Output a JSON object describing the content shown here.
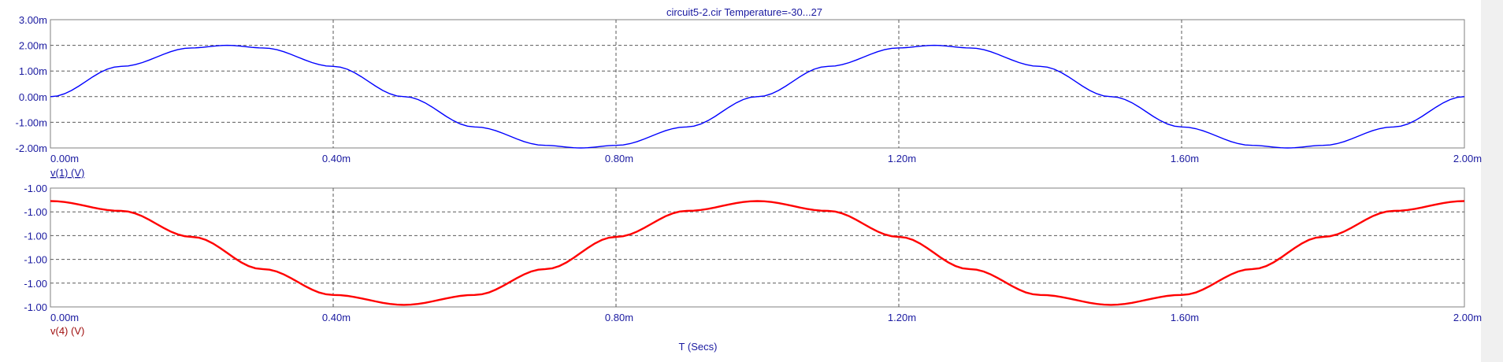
{
  "title": "circuit5-2.cir Temperature=-30...27",
  "colors": {
    "title": "#1a1aa0",
    "top_axis_text": "#1a1aa0",
    "bottom_axis_text": "#a01010",
    "x_axis_text": "#1a1aa0",
    "top_trace": "#0000ff",
    "bottom_trace": "#ff0000"
  },
  "chart_data": [
    {
      "type": "line",
      "panel": "top",
      "trace_label": "v(1) (V)",
      "x_ticks": [
        "0.00m",
        "0.40m",
        "0.80m",
        "1.20m",
        "1.60m",
        "2.00m"
      ],
      "x_values": [
        0,
        0.4,
        0.8,
        1.2,
        1.6,
        2.0
      ],
      "y_ticks": [
        "3.00m",
        "2.00m",
        "1.00m",
        "0.00m",
        "-1.00m",
        "-2.00m"
      ],
      "y_tick_values": [
        3,
        2,
        1,
        0,
        -1,
        -2
      ],
      "xlim": [
        0,
        2.0
      ],
      "ylim": [
        -2,
        3
      ],
      "grid": true,
      "series": [
        {
          "name": "v(1) (V)",
          "x": [
            0,
            0.1,
            0.2,
            0.25,
            0.3,
            0.4,
            0.5,
            0.6,
            0.7,
            0.75,
            0.8,
            0.9,
            1.0,
            1.1,
            1.2,
            1.25,
            1.3,
            1.4,
            1.5,
            1.6,
            1.7,
            1.75,
            1.8,
            1.9,
            2.0
          ],
          "y": [
            0,
            1.18,
            1.9,
            2.0,
            1.9,
            1.18,
            0,
            -1.18,
            -1.9,
            -2.0,
            -1.9,
            -1.18,
            0,
            1.18,
            1.9,
            2.0,
            1.9,
            1.18,
            0,
            -1.18,
            -1.9,
            -2.0,
            -1.9,
            -1.18,
            0
          ]
        }
      ]
    },
    {
      "type": "line",
      "panel": "bottom",
      "trace_label": "v(4) (V)",
      "x_ticks": [
        "0.00m",
        "0.40m",
        "0.80m",
        "1.20m",
        "1.60m",
        "2.00m"
      ],
      "x_values": [
        0,
        0.4,
        0.8,
        1.2,
        1.6,
        2.0
      ],
      "y_ticks": [
        "-1.00",
        "-1.00",
        "-1.00",
        "-1.00",
        "-1.00",
        "-1.00"
      ],
      "grid": true,
      "series": [
        {
          "name": "v(4) (V)",
          "x": [
            0,
            0.1,
            0.2,
            0.3,
            0.4,
            0.5,
            0.6,
            0.7,
            0.8,
            0.9,
            1.0,
            1.1,
            1.2,
            1.3,
            1.4,
            1.5,
            1.6,
            1.7,
            1.8,
            1.9,
            2.0
          ],
          "y": [
            1,
            0.81,
            0.31,
            -0.31,
            -0.81,
            -1,
            -0.81,
            -0.31,
            0.31,
            0.81,
            1,
            0.81,
            0.31,
            -0.31,
            -0.81,
            -1,
            -0.81,
            -0.31,
            0.31,
            0.81,
            1
          ]
        }
      ]
    }
  ],
  "x_axis_title": "T (Secs)"
}
